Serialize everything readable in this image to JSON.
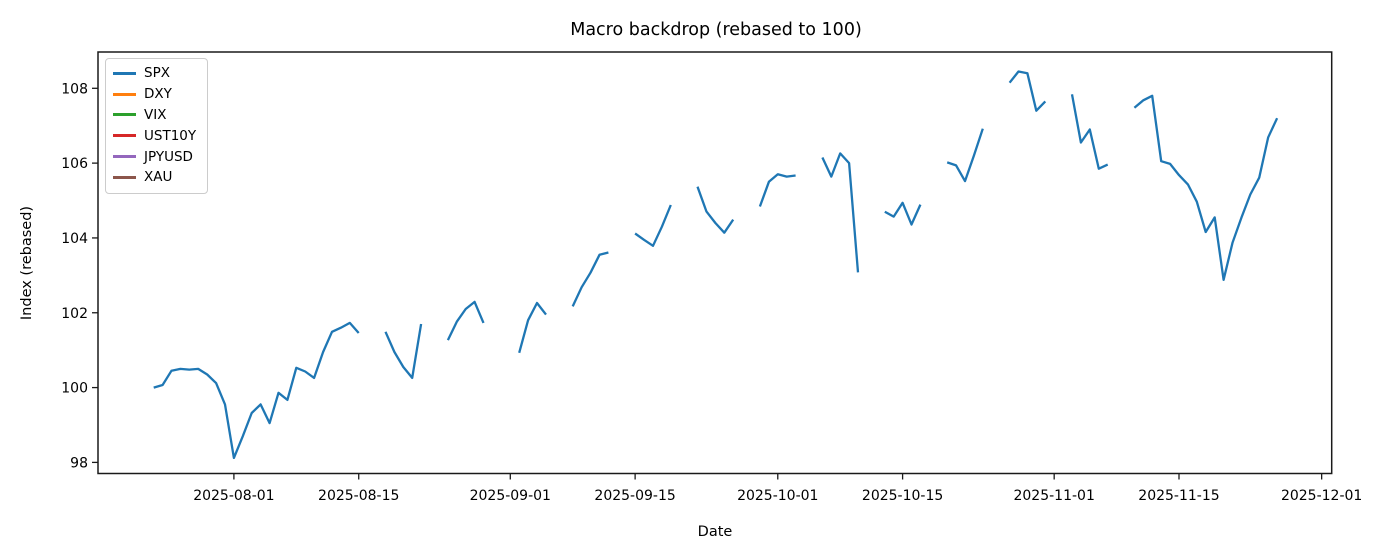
{
  "figure": {
    "background": "#ffffff",
    "text_color": "#000000",
    "spine_color": "#1a1a1a"
  },
  "chart_data": {
    "type": "line",
    "title": "Macro backdrop (rebased to 100)",
    "xlabel": "Date",
    "ylabel": "Index (rebased)",
    "grid": false,
    "legend_position": "upper left",
    "y_ticks": [
      98,
      100,
      102,
      104,
      106,
      108
    ],
    "ylim": [
      97.6,
      109.0
    ],
    "x_tick_labels": [
      "2025-08-01",
      "2025-08-15",
      "2025-09-01",
      "2025-09-15",
      "2025-10-01",
      "2025-10-15",
      "2025-11-01",
      "2025-11-15",
      "2025-12-01"
    ],
    "xlim": [
      "2025-07-17",
      "2025-12-02"
    ],
    "series": [
      {
        "name": "SPX",
        "color": "#1f77b4",
        "visible": true,
        "points": [
          [
            "2025-07-23",
            100.0
          ],
          [
            "2025-07-24",
            100.07
          ],
          [
            "2025-07-25",
            100.45
          ],
          [
            "2025-07-26",
            100.5
          ],
          [
            "2025-07-27",
            100.48
          ],
          [
            "2025-07-28",
            100.5
          ],
          [
            "2025-07-29",
            100.35
          ],
          [
            "2025-07-30",
            100.12
          ],
          [
            "2025-07-31",
            99.55
          ],
          [
            "2025-08-01",
            98.12
          ],
          [
            "2025-08-02",
            98.7
          ],
          [
            "2025-08-03",
            99.32
          ],
          [
            "2025-08-04",
            99.55
          ],
          [
            "2025-08-05",
            99.05
          ],
          [
            "2025-08-06",
            99.86
          ],
          [
            "2025-08-07",
            99.67
          ],
          [
            "2025-08-08",
            100.53
          ],
          [
            "2025-08-09",
            100.43
          ],
          [
            "2025-08-10",
            100.26
          ],
          [
            "2025-08-11",
            100.95
          ],
          [
            "2025-08-12",
            101.49
          ],
          [
            "2025-08-13",
            101.6
          ],
          [
            "2025-08-14",
            101.73
          ],
          [
            "2025-08-15",
            101.46
          ],
          [
            "2025-08-16",
            null
          ],
          [
            "2025-08-17",
            null
          ],
          [
            "2025-08-18",
            101.49
          ],
          [
            "2025-08-19",
            100.95
          ],
          [
            "2025-08-20",
            100.55
          ],
          [
            "2025-08-21",
            100.26
          ],
          [
            "2025-08-22",
            101.7
          ],
          [
            "2025-08-23",
            null
          ],
          [
            "2025-08-24",
            null
          ],
          [
            "2025-08-25",
            101.27
          ],
          [
            "2025-08-26",
            101.76
          ],
          [
            "2025-08-27",
            102.1
          ],
          [
            "2025-08-28",
            102.29
          ],
          [
            "2025-08-29",
            101.73
          ],
          [
            "2025-08-30",
            null
          ],
          [
            "2025-08-31",
            null
          ],
          [
            "2025-09-01",
            null
          ],
          [
            "2025-09-02",
            100.93
          ],
          [
            "2025-09-03",
            101.8
          ],
          [
            "2025-09-04",
            102.26
          ],
          [
            "2025-09-05",
            101.95
          ],
          [
            "2025-09-06",
            null
          ],
          [
            "2025-09-07",
            null
          ],
          [
            "2025-09-08",
            102.17
          ],
          [
            "2025-09-09",
            102.68
          ],
          [
            "2025-09-10",
            103.07
          ],
          [
            "2025-09-11",
            103.55
          ],
          [
            "2025-09-12",
            103.61
          ],
          [
            "2025-09-13",
            null
          ],
          [
            "2025-09-14",
            null
          ],
          [
            "2025-09-15",
            104.12
          ],
          [
            "2025-09-16",
            103.95
          ],
          [
            "2025-09-17",
            103.79
          ],
          [
            "2025-09-18",
            104.3
          ],
          [
            "2025-09-19",
            104.88
          ],
          [
            "2025-09-20",
            null
          ],
          [
            "2025-09-21",
            null
          ],
          [
            "2025-09-22",
            105.37
          ],
          [
            "2025-09-23",
            104.71
          ],
          [
            "2025-09-24",
            104.4
          ],
          [
            "2025-09-25",
            104.14
          ],
          [
            "2025-09-26",
            104.49
          ],
          [
            "2025-09-27",
            null
          ],
          [
            "2025-09-28",
            null
          ],
          [
            "2025-09-29",
            104.84
          ],
          [
            "2025-09-30",
            105.5
          ],
          [
            "2025-10-01",
            105.7
          ],
          [
            "2025-10-02",
            105.64
          ],
          [
            "2025-10-03",
            105.67
          ],
          [
            "2025-10-04",
            null
          ],
          [
            "2025-10-05",
            null
          ],
          [
            "2025-10-06",
            106.15
          ],
          [
            "2025-10-07",
            105.64
          ],
          [
            "2025-10-08",
            106.26
          ],
          [
            "2025-10-09",
            106.0
          ],
          [
            "2025-10-10",
            103.08
          ],
          [
            "2025-10-11",
            null
          ],
          [
            "2025-10-12",
            null
          ],
          [
            "2025-10-13",
            104.7
          ],
          [
            "2025-10-14",
            104.57
          ],
          [
            "2025-10-15",
            104.94
          ],
          [
            "2025-10-16",
            104.36
          ],
          [
            "2025-10-17",
            104.89
          ],
          [
            "2025-10-18",
            null
          ],
          [
            "2025-10-19",
            null
          ],
          [
            "2025-10-20",
            106.02
          ],
          [
            "2025-10-21",
            105.94
          ],
          [
            "2025-10-22",
            105.52
          ],
          [
            "2025-10-23",
            106.2
          ],
          [
            "2025-10-24",
            106.92
          ],
          [
            "2025-10-25",
            null
          ],
          [
            "2025-10-26",
            null
          ],
          [
            "2025-10-27",
            108.15
          ],
          [
            "2025-10-28",
            108.45
          ],
          [
            "2025-10-29",
            108.4
          ],
          [
            "2025-10-30",
            107.4
          ],
          [
            "2025-10-31",
            107.65
          ],
          [
            "2025-11-01",
            null
          ],
          [
            "2025-11-02",
            null
          ],
          [
            "2025-11-03",
            107.84
          ],
          [
            "2025-11-04",
            106.55
          ],
          [
            "2025-11-05",
            106.9
          ],
          [
            "2025-11-06",
            105.85
          ],
          [
            "2025-11-07",
            105.96
          ],
          [
            "2025-11-08",
            null
          ],
          [
            "2025-11-09",
            null
          ],
          [
            "2025-11-10",
            107.48
          ],
          [
            "2025-11-11",
            107.68
          ],
          [
            "2025-11-12",
            107.8
          ],
          [
            "2025-11-13",
            106.05
          ],
          [
            "2025-11-14",
            105.98
          ],
          [
            "2025-11-15",
            105.68
          ],
          [
            "2025-11-16",
            105.43
          ],
          [
            "2025-11-17",
            104.97
          ],
          [
            "2025-11-18",
            104.16
          ],
          [
            "2025-11-19",
            104.55
          ],
          [
            "2025-11-20",
            102.88
          ],
          [
            "2025-11-21",
            103.87
          ],
          [
            "2025-11-22",
            104.54
          ],
          [
            "2025-11-23",
            105.16
          ],
          [
            "2025-11-24",
            105.61
          ],
          [
            "2025-11-25",
            106.69
          ],
          [
            "2025-11-26",
            107.2
          ]
        ]
      },
      {
        "name": "DXY",
        "color": "#ff7f0e",
        "visible": false,
        "points": []
      },
      {
        "name": "VIX",
        "color": "#2ca02c",
        "visible": false,
        "points": []
      },
      {
        "name": "UST10Y",
        "color": "#d62728",
        "visible": false,
        "points": []
      },
      {
        "name": "JPYUSD",
        "color": "#9467bd",
        "visible": false,
        "points": []
      },
      {
        "name": "XAU",
        "color": "#8c564b",
        "visible": false,
        "points": []
      }
    ]
  }
}
